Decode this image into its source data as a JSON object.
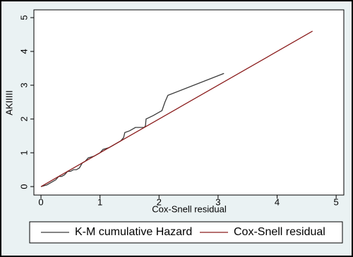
{
  "chart_data": {
    "type": "line",
    "x_label": "Cox-Snell residual",
    "y_label": "AKIIIII",
    "xlim": [
      -0.12,
      5.13
    ],
    "ylim": [
      -0.25,
      5.23
    ],
    "xticks": [
      0,
      1,
      2,
      3,
      4,
      5
    ],
    "yticks": [
      0,
      1,
      2,
      3,
      4,
      5
    ],
    "legend": "bottom",
    "series": [
      {
        "name": "K-M cumulative Hazard",
        "color": "#3a3a3a",
        "x": [
          0,
          0.1,
          0.2,
          0.25,
          0.3,
          0.35,
          0.4,
          0.45,
          0.5,
          0.55,
          0.6,
          0.65,
          0.7,
          0.75,
          0.8,
          0.9,
          0.95,
          1.0,
          1.05,
          1.15,
          1.2,
          1.3,
          1.35,
          1.4,
          1.42,
          1.5,
          1.55,
          1.6,
          1.75,
          1.77,
          1.78,
          1.9,
          2.05,
          2.1,
          2.15,
          3.1
        ],
        "values": [
          0,
          0.05,
          0.15,
          0.2,
          0.3,
          0.3,
          0.35,
          0.45,
          0.45,
          0.5,
          0.5,
          0.55,
          0.7,
          0.75,
          0.85,
          0.9,
          0.95,
          1.0,
          1.1,
          1.15,
          1.2,
          1.3,
          1.35,
          1.45,
          1.6,
          1.65,
          1.7,
          1.75,
          1.75,
          1.8,
          2.0,
          2.1,
          2.25,
          2.5,
          2.7,
          3.35
        ]
      },
      {
        "name": "Cox-Snell residual",
        "color": "#8b1c1c",
        "x": [
          0,
          4.6
        ],
        "values": [
          0,
          4.6
        ]
      }
    ]
  }
}
